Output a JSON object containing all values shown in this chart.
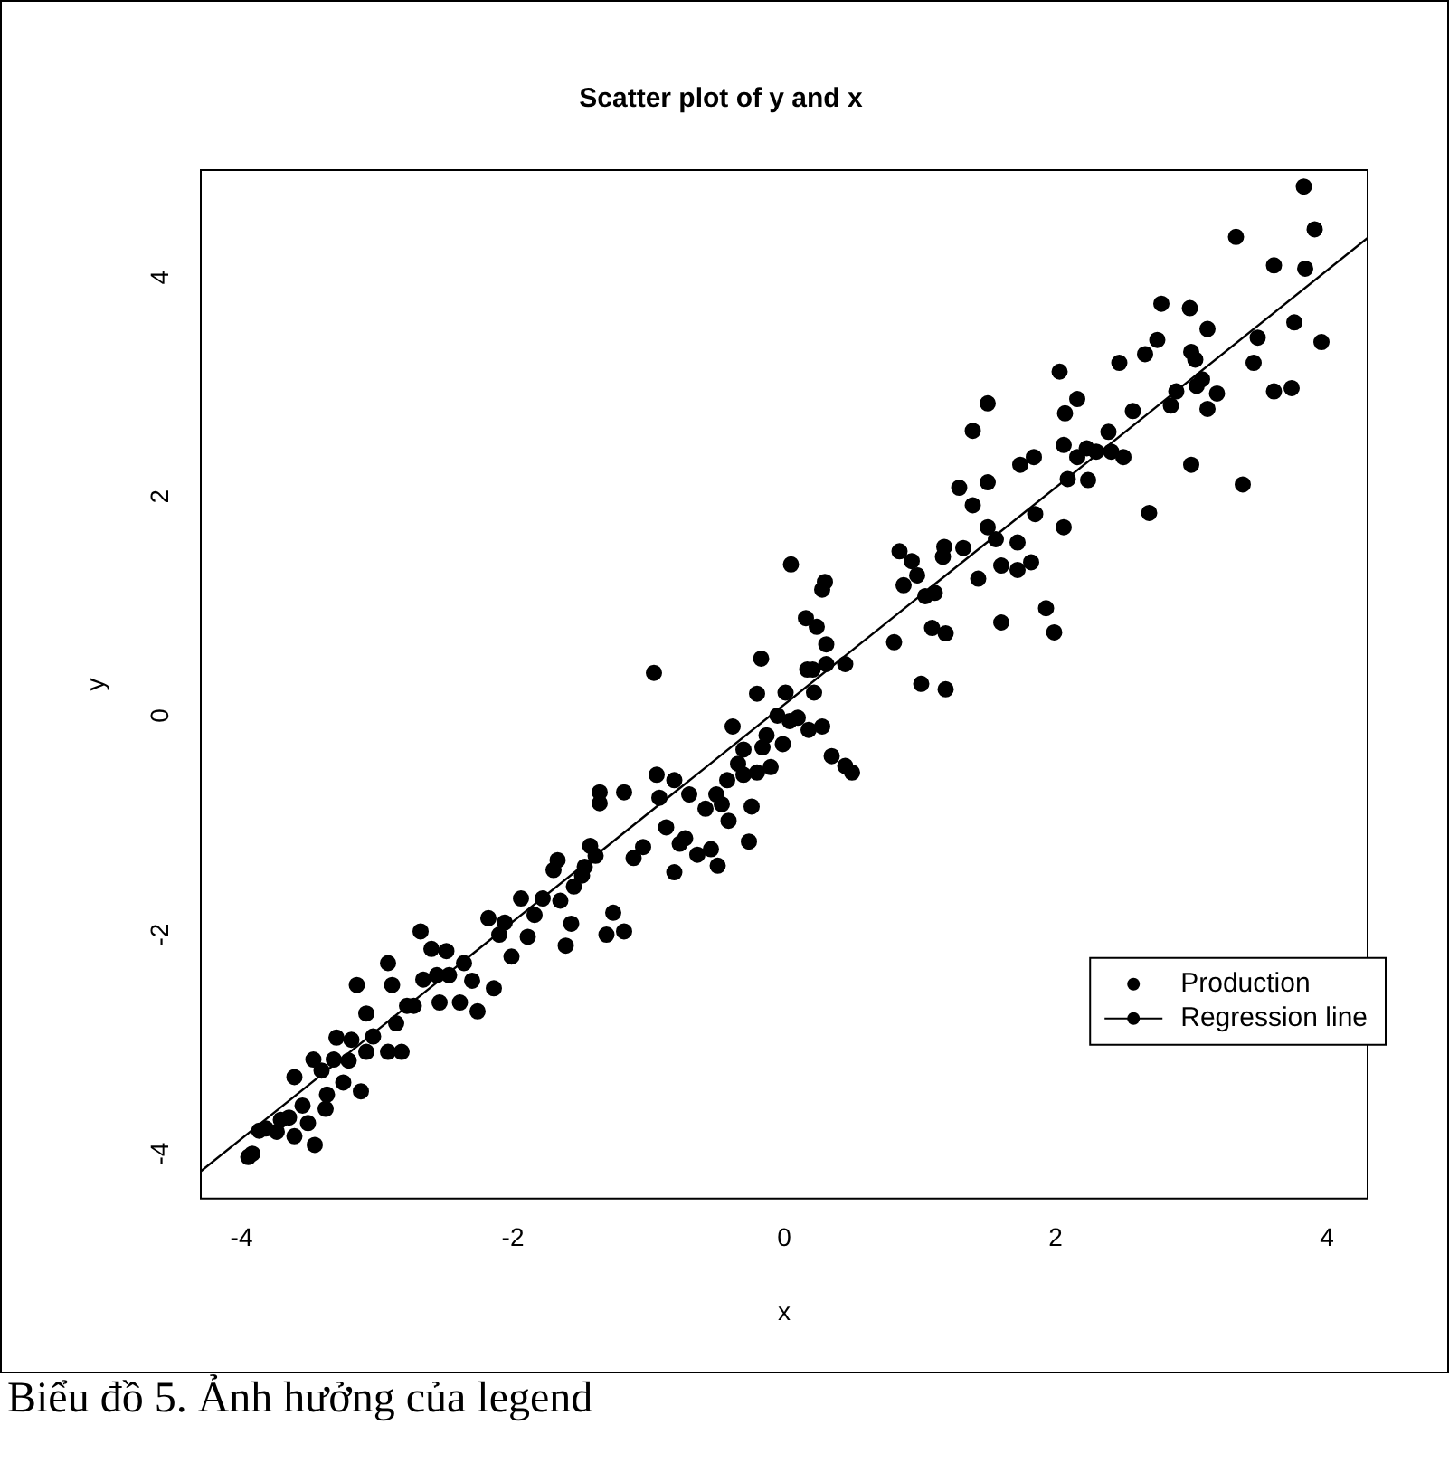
{
  "chart_data": {
    "type": "scatter",
    "title": "Scatter plot of y and x",
    "xlabel": "x",
    "ylabel": "y",
    "xlim": [
      -4.3,
      4.3
    ],
    "ylim": [
      -4.41,
      4.98
    ],
    "xticks": [
      -4,
      -2,
      0,
      2,
      4
    ],
    "yticks": [
      -4,
      -2,
      0,
      2,
      4
    ],
    "grid": false,
    "legend": "bottom right",
    "marker": "circle",
    "annotations": [
      "Biểu đồ 5. Ảnh hưởng của legend"
    ],
    "series": [
      {
        "name": "Production",
        "color": "#000000",
        "x": [
          -3.95,
          -3.92,
          -3.87,
          -3.82,
          -3.74,
          -3.71,
          -3.65,
          -3.61,
          -3.61,
          -3.55,
          -3.51,
          -3.47,
          -3.46,
          -3.41,
          -3.38,
          -3.37,
          -3.32,
          -3.3,
          -3.25,
          -3.21,
          -3.19,
          -3.15,
          -3.12,
          -3.08,
          -3.08,
          -3.03,
          -2.92,
          -2.92,
          -2.89,
          -2.86,
          -2.82,
          -2.78,
          -2.73,
          -2.68,
          -2.66,
          -2.6,
          -2.56,
          -2.54,
          -2.49,
          -2.47,
          -2.39,
          -2.36,
          -2.3,
          -2.26,
          -2.18,
          -2.14,
          -2.1,
          -2.06,
          -2.01,
          -1.94,
          -1.89,
          -1.84,
          -1.78,
          -1.7,
          -1.67,
          -1.65,
          -1.61,
          -1.57,
          -1.55,
          -1.49,
          -1.47,
          -1.43,
          -1.39,
          -1.36,
          -1.31,
          -1.26,
          -1.18,
          -1.11,
          -1.04,
          -0.96,
          -0.94,
          -0.92,
          -0.87,
          -0.81,
          -0.81,
          -0.77,
          -0.73,
          -0.7,
          -0.64,
          -0.58,
          -0.54,
          -0.5,
          -0.49,
          -0.46,
          -0.42,
          -0.41,
          -0.38,
          -0.34,
          -0.3,
          -0.3,
          -0.26,
          -0.24,
          -0.2,
          -0.16,
          -0.13,
          -0.1,
          -0.05,
          -0.01,
          0.01,
          0.04,
          0.1,
          0.16,
          0.17,
          0.22,
          0.28,
          0.31,
          0.35,
          0.45,
          0.05,
          0.3,
          0.24,
          -0.17,
          -0.2,
          -1.18,
          -1.36,
          3.83,
          3.91,
          3.84,
          3.96,
          3.76,
          3.74,
          3.61,
          3.61,
          3.33,
          3.49,
          3.46,
          3.38,
          3.12,
          2.99,
          2.78,
          2.75,
          2.66,
          3.0,
          3.03,
          3.08,
          3.04,
          3.19,
          3.12,
          2.89,
          2.85,
          3.0,
          2.69,
          2.57,
          2.47,
          2.39,
          2.41,
          2.5,
          2.3,
          2.24,
          2.23,
          2.16,
          2.16,
          2.07,
          2.03,
          2.06,
          2.09,
          2.06,
          1.99,
          1.93,
          1.85,
          1.84,
          1.74,
          1.72,
          1.82,
          1.72,
          1.6,
          1.6,
          1.56,
          1.5,
          1.5,
          1.5,
          1.39,
          1.39,
          1.29,
          1.32,
          1.43,
          1.18,
          1.17,
          1.19,
          1.09,
          1.19,
          1.01,
          1.11,
          1.04,
          0.98,
          0.94,
          0.88,
          0.85,
          0.81,
          0.45,
          0.31,
          0.21,
          0.28,
          0.5,
          0.18
        ],
        "values": [
          -4.03,
          -4.0,
          -3.79,
          -3.77,
          -3.8,
          -3.69,
          -3.67,
          -3.3,
          -3.84,
          -3.56,
          -3.72,
          -3.14,
          -3.92,
          -3.24,
          -3.59,
          -3.46,
          -3.14,
          -2.94,
          -3.35,
          -3.15,
          -2.96,
          -2.46,
          -3.43,
          -2.72,
          -3.07,
          -2.93,
          -2.26,
          -3.07,
          -2.46,
          -2.81,
          -3.07,
          -2.65,
          -2.65,
          -1.97,
          -2.41,
          -2.13,
          -2.37,
          -2.62,
          -2.15,
          -2.37,
          -2.62,
          -2.26,
          -2.42,
          -2.7,
          -1.85,
          -2.49,
          -2.0,
          -1.89,
          -2.2,
          -1.67,
          -2.02,
          -1.82,
          -1.67,
          -1.41,
          -1.32,
          -1.69,
          -2.1,
          -1.9,
          -1.56,
          -1.46,
          -1.38,
          -1.19,
          -1.28,
          -0.8,
          -2.0,
          -1.8,
          -1.97,
          -1.3,
          -1.2,
          0.39,
          -0.54,
          -0.75,
          -1.02,
          -0.59,
          -1.43,
          -1.17,
          -1.12,
          -0.72,
          -1.27,
          -0.85,
          -1.22,
          -0.72,
          -1.37,
          -0.81,
          -0.59,
          -0.96,
          -0.1,
          -0.44,
          -0.31,
          -0.54,
          -1.15,
          -0.83,
          -0.52,
          -0.29,
          -0.18,
          -0.47,
          0.0,
          -0.26,
          0.21,
          -0.05,
          -0.02,
          0.89,
          0.42,
          0.21,
          1.15,
          0.47,
          -0.37,
          -0.46,
          1.38,
          1.22,
          0.81,
          0.52,
          0.2,
          -0.7,
          -0.7,
          4.83,
          4.44,
          4.08,
          3.41,
          3.59,
          2.99,
          2.96,
          4.11,
          4.37,
          3.45,
          3.22,
          2.11,
          3.53,
          3.72,
          3.76,
          3.43,
          3.3,
          3.32,
          3.25,
          3.07,
          3.01,
          2.94,
          2.8,
          2.96,
          2.83,
          2.29,
          1.85,
          2.78,
          3.22,
          2.59,
          2.41,
          2.36,
          2.41,
          2.15,
          2.44,
          2.36,
          2.89,
          2.76,
          3.14,
          2.47,
          2.16,
          1.72,
          0.76,
          0.98,
          1.84,
          2.36,
          2.29,
          1.58,
          1.4,
          1.33,
          1.37,
          0.85,
          1.61,
          1.72,
          2.13,
          2.85,
          2.6,
          1.92,
          2.08,
          1.53,
          1.25,
          1.54,
          1.45,
          0.75,
          0.8,
          0.24,
          0.29,
          1.12,
          1.09,
          1.28,
          1.41,
          1.19,
          1.5,
          0.67,
          0.47,
          0.65,
          0.42,
          -0.1,
          -0.52,
          -0.13
        ]
      },
      {
        "name": "Regression line",
        "type": "line",
        "color": "#000000",
        "marker": "none",
        "line_style": "solid",
        "x": [
          -4.3,
          4.3
        ],
        "values": [
          -4.16,
          4.36
        ]
      }
    ]
  }
}
